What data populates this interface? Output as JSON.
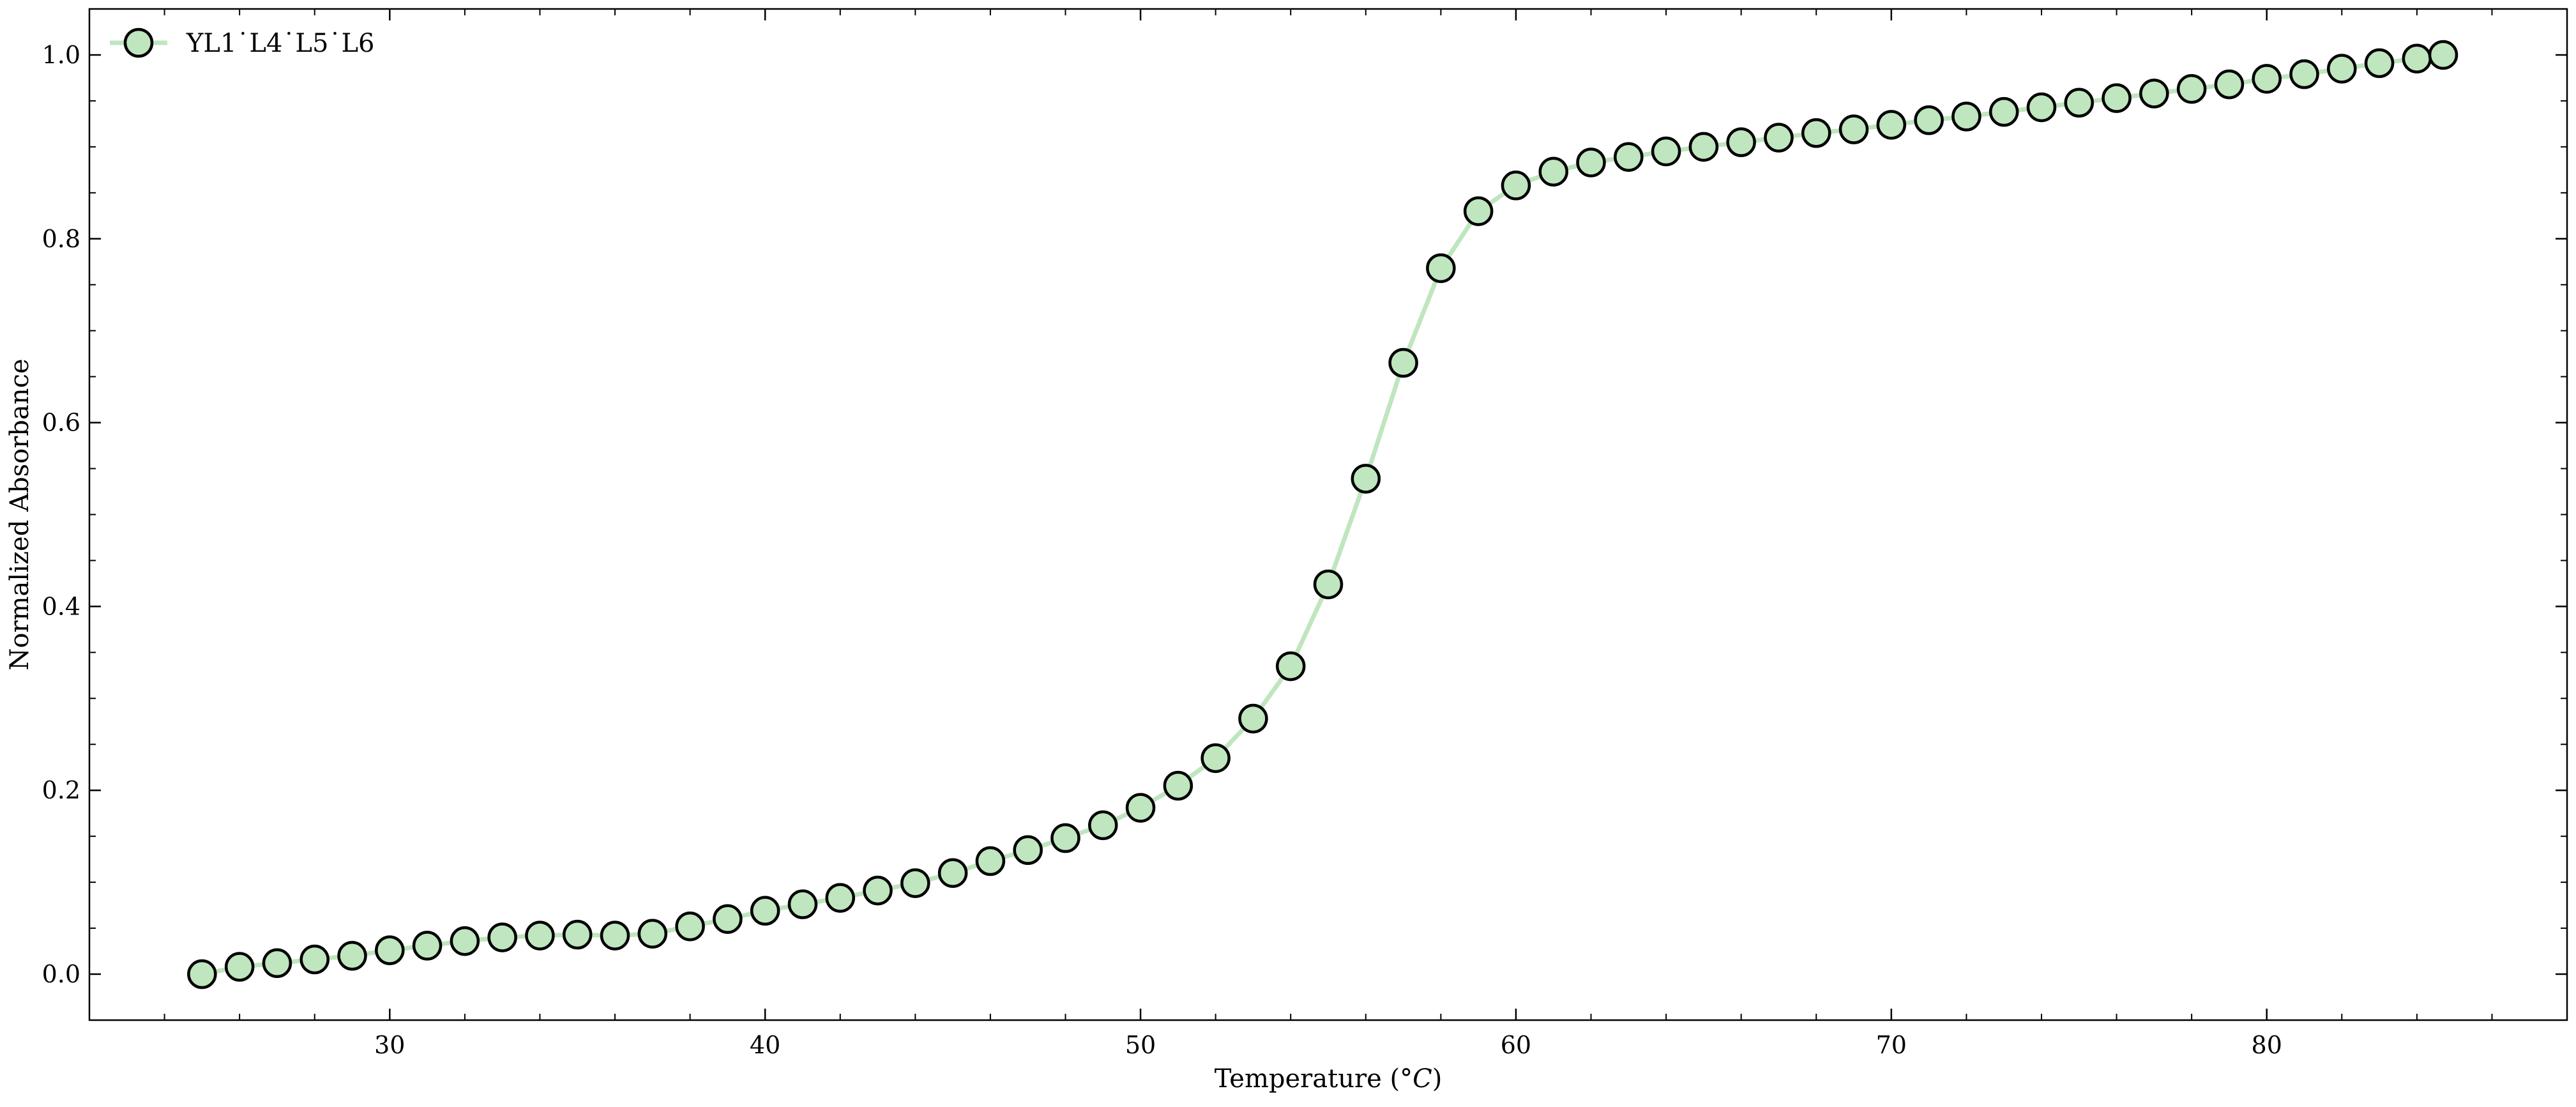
{
  "chart_data": {
    "type": "line",
    "xlabel": "Temperature (",
    "xlabel_italic": "°C",
    "xlabel_close": ")",
    "ylabel": "Normalized Absorbance",
    "xlim": [
      22,
      88
    ],
    "ylim": [
      -0.05,
      1.05
    ],
    "x_ticks": [
      30,
      40,
      50,
      60,
      70,
      80
    ],
    "x_tick_labels": [
      "30",
      "40",
      "50",
      "60",
      "70",
      "80"
    ],
    "x_minor_step": 2,
    "y_ticks": [
      0.0,
      0.2,
      0.4,
      0.6,
      0.8,
      1.0
    ],
    "y_tick_labels": [
      "0.0",
      "0.2",
      "0.4",
      "0.6",
      "0.8",
      "1.0"
    ],
    "y_minor_step": 0.05,
    "grid": false,
    "legend_position": "top-left",
    "series": [
      {
        "name": "YL1˙L4˙L5˙L6",
        "line_color": "#bfe6be",
        "marker_face": "#bfe6be",
        "marker_edge": "#000000",
        "x": [
          25,
          26,
          27,
          28,
          29,
          30,
          31,
          32,
          33,
          34,
          35,
          36,
          37,
          38,
          39,
          40,
          41,
          42,
          43,
          44,
          45,
          46,
          47,
          48,
          49,
          50,
          51,
          52,
          53,
          54,
          55,
          56,
          57,
          58,
          59,
          60,
          61,
          62,
          63,
          64,
          65,
          66,
          67,
          68,
          69,
          70,
          71,
          72,
          73,
          74,
          75,
          76,
          77,
          78,
          79,
          80,
          81,
          82,
          83,
          84,
          84.7
        ],
        "y": [
          0.0,
          0.008,
          0.012,
          0.016,
          0.02,
          0.026,
          0.031,
          0.036,
          0.04,
          0.042,
          0.043,
          0.042,
          0.044,
          0.052,
          0.06,
          0.069,
          0.076,
          0.083,
          0.091,
          0.099,
          0.11,
          0.123,
          0.135,
          0.148,
          0.162,
          0.181,
          0.205,
          0.235,
          0.278,
          0.335,
          0.424,
          0.539,
          0.665,
          0.768,
          0.83,
          0.858,
          0.873,
          0.883,
          0.889,
          0.895,
          0.9,
          0.905,
          0.91,
          0.915,
          0.919,
          0.924,
          0.929,
          0.933,
          0.938,
          0.943,
          0.948,
          0.953,
          0.958,
          0.963,
          0.968,
          0.974,
          0.979,
          0.985,
          0.991,
          0.996,
          1.0
        ]
      }
    ]
  }
}
